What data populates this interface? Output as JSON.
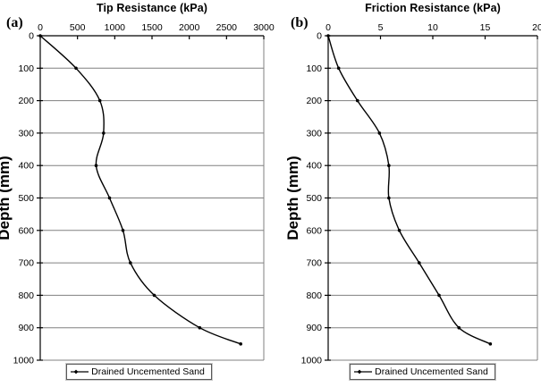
{
  "colors": {
    "background": "#ffffff",
    "gridline": "#808080",
    "axis": "#000000",
    "series_line": "#000000",
    "legend_border": "#595959"
  },
  "legend_marker": "line-with-diamond-marker",
  "chart_data": [
    {
      "type": "line",
      "panel_label": "(a)",
      "title": "Tip Resistance (kPa)",
      "xlabel": "Tip Resistance (kPa)",
      "ylabel": "Depth (mm)",
      "x_axis_position": "top",
      "y_inverted": true,
      "grid": "horizontal",
      "xlim": [
        0,
        3000
      ],
      "x_ticks": [
        0,
        500,
        1000,
        1500,
        2000,
        2500,
        3000
      ],
      "ylim": [
        0,
        1000
      ],
      "y_ticks": [
        0,
        100,
        200,
        300,
        400,
        500,
        600,
        700,
        800,
        900,
        1000
      ],
      "legend": "Drained Uncemented Sand",
      "legend_position": "bottom",
      "series": [
        {
          "name": "Drained Uncemented Sand",
          "depths": [
            0,
            100,
            200,
            300,
            400,
            500,
            600,
            700,
            800,
            900,
            950
          ],
          "values": [
            0,
            480,
            800,
            850,
            750,
            930,
            1110,
            1210,
            1530,
            2140,
            2690
          ]
        }
      ]
    },
    {
      "type": "line",
      "panel_label": "(b)",
      "title": "Friction Resistance (kPa)",
      "xlabel": "Friction Resistance (kPa)",
      "ylabel": "Depth (mm)",
      "x_axis_position": "top",
      "y_inverted": true,
      "grid": "horizontal",
      "xlim": [
        0,
        20
      ],
      "x_ticks": [
        0,
        5,
        10,
        15,
        20
      ],
      "ylim": [
        0,
        1000
      ],
      "y_ticks": [
        0,
        100,
        200,
        300,
        400,
        500,
        600,
        700,
        800,
        900,
        1000
      ],
      "legend": "Drained Uncemented Sand",
      "legend_position": "bottom",
      "series": [
        {
          "name": "Drained Uncemented Sand",
          "depths": [
            0,
            100,
            200,
            300,
            400,
            500,
            600,
            700,
            800,
            900,
            950
          ],
          "values": [
            0,
            1.0,
            2.8,
            4.9,
            5.8,
            5.8,
            6.8,
            8.7,
            10.6,
            12.5,
            15.5
          ]
        }
      ]
    }
  ]
}
